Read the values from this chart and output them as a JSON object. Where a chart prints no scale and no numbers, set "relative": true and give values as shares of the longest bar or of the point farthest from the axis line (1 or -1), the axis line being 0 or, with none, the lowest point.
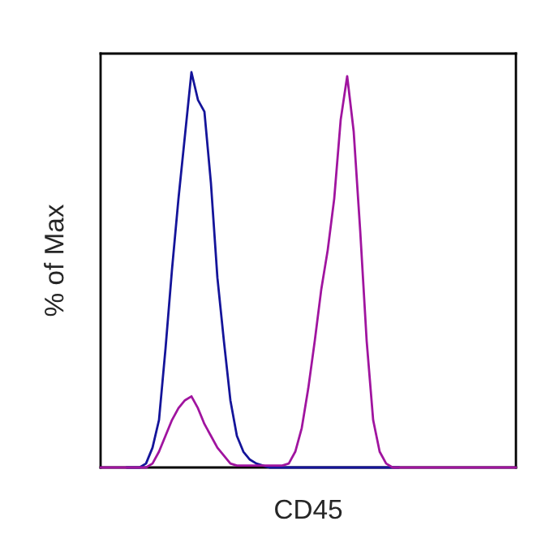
{
  "chart_data": {
    "type": "line",
    "relative": true,
    "xlabel": "CD45",
    "ylabel": "% of Max",
    "tick_labels": false,
    "grid": false,
    "legend": false,
    "categories": [
      null,
      null,
      null,
      null,
      null,
      null,
      null,
      null,
      null,
      null,
      null,
      null,
      null,
      null,
      null,
      null,
      null,
      null,
      null,
      null,
      null,
      null,
      null,
      null,
      null,
      null,
      null,
      null,
      null,
      null,
      null,
      null,
      null,
      null,
      null,
      null,
      null,
      null,
      null,
      null,
      null,
      null,
      null,
      null,
      null,
      null,
      null,
      null,
      null,
      null,
      null,
      null,
      null,
      null,
      null,
      null,
      null,
      null,
      null,
      null,
      null,
      null,
      null,
      null,
      null
    ],
    "series": [
      {
        "color": "#14149a",
        "values": [
          null,
          null,
          null,
          null,
          0,
          0,
          0,
          0.01,
          0.05,
          0.12,
          0.3,
          0.5,
          0.68,
          0.84,
          1.0,
          0.93,
          0.9,
          0.72,
          0.48,
          0.32,
          0.17,
          0.08,
          0.04,
          0.02,
          0.01,
          0.005,
          0,
          0,
          0,
          0,
          0,
          0,
          0,
          0,
          0,
          0,
          0,
          0,
          0,
          0,
          0,
          0,
          0,
          0,
          0,
          0,
          0,
          null,
          null,
          null,
          null,
          null,
          null,
          null,
          null,
          null,
          null,
          null,
          null,
          null,
          null,
          null,
          null,
          null,
          null
        ]
      },
      {
        "color": "#a0149f",
        "values": [
          0,
          0,
          0,
          0,
          0,
          0,
          0,
          0,
          0.01,
          0.04,
          0.08,
          0.12,
          0.15,
          0.17,
          0.18,
          0.15,
          0.11,
          0.08,
          0.05,
          0.03,
          0.01,
          0.005,
          0.005,
          0.005,
          0.005,
          0.005,
          0.005,
          0.005,
          0.005,
          0.01,
          0.04,
          0.1,
          0.2,
          0.32,
          0.45,
          0.55,
          0.68,
          0.88,
          0.99,
          0.85,
          0.6,
          0.32,
          0.12,
          0.04,
          0.01,
          0,
          0,
          0,
          0,
          0,
          0,
          0,
          0,
          0,
          0,
          0,
          0,
          0,
          0,
          0,
          0,
          0,
          0,
          0,
          0
        ]
      }
    ]
  }
}
